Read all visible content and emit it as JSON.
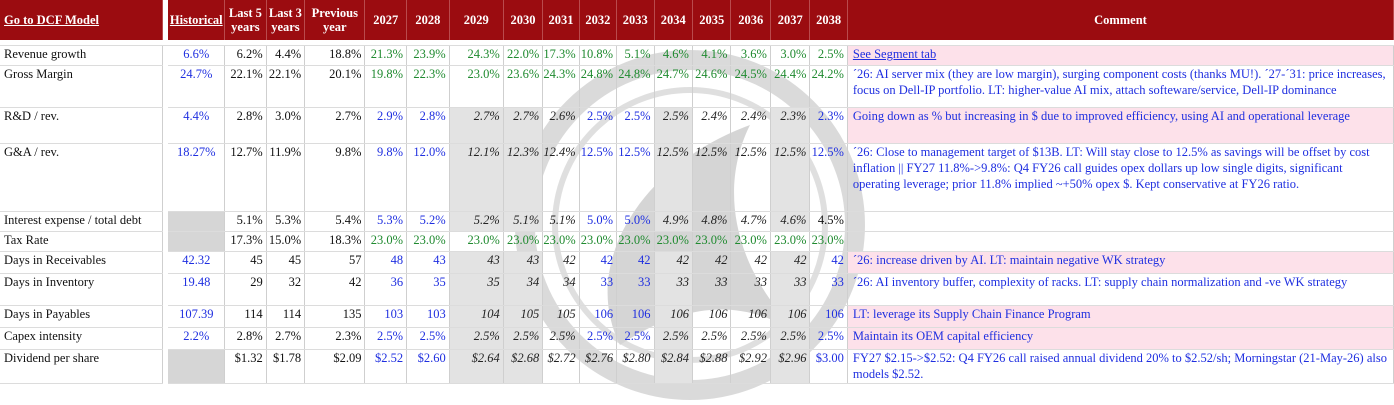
{
  "header": {
    "link_label": "Go to DCF Model",
    "historical": "Historical",
    "last5": "Last 5 years",
    "last3": "Last 3 years",
    "previous": "Previous year",
    "years": [
      "2027",
      "2028",
      "2029",
      "2030",
      "2031",
      "2032",
      "2033",
      "2034",
      "2035",
      "2036",
      "2037",
      "2038"
    ],
    "comment": "Comment"
  },
  "rows": [
    {
      "label": "Revenue growth",
      "historical": "6.6%",
      "last5": "6.2%",
      "last3": "4.4%",
      "previous": "18.8%",
      "values": [
        "21.3%",
        "23.9%",
        "24.3%",
        "22.0%",
        "17.3%",
        "10.8%",
        "5.1%",
        "4.6%",
        "4.1%",
        "3.6%",
        "3.0%",
        "2.5%"
      ],
      "styles": [
        "g",
        "g",
        "g",
        "g",
        "g",
        "g",
        "g",
        "g",
        "g",
        "g",
        "g",
        "g"
      ],
      "comment": "See Segment tab",
      "comment_link": true,
      "pink": true
    },
    {
      "label": "Gross Margin",
      "historical": "24.7%",
      "last5": "22.1%",
      "last3": "22.1%",
      "previous": "20.1%",
      "values": [
        "19.8%",
        "22.3%",
        "23.0%",
        "23.6%",
        "24.3%",
        "24.8%",
        "24.8%",
        "24.7%",
        "24.6%",
        "24.5%",
        "24.4%",
        "24.2%"
      ],
      "styles": [
        "g",
        "g",
        "g",
        "g",
        "g",
        "g",
        "g",
        "g",
        "g",
        "g",
        "g",
        "g"
      ],
      "comment": "´26: AI server mix (they are low margin), surging component costs (thanks MU!). ´27-´31: price increases, focus on Dell-IP portfolio. LT: higher-value AI mix, attach softeware/service, Dell-IP dominance",
      "pink": false
    },
    {
      "label": "R&D / rev.",
      "historical": "4.4%",
      "last5": "2.8%",
      "last3": "3.0%",
      "previous": "2.7%",
      "values": [
        "2.9%",
        "2.8%",
        "2.7%",
        "2.7%",
        "2.6%",
        "2.5%",
        "2.5%",
        "2.5%",
        "2.4%",
        "2.4%",
        "2.3%",
        "2.3%"
      ],
      "styles": [
        "b",
        "b",
        "ks",
        "ks",
        "k",
        "b",
        "b",
        "ks",
        "k",
        "k",
        "ks",
        "b"
      ],
      "comment": "Going down as % but increasing in $ due to improved efficiency, using AI and operational leverage",
      "pink": true
    },
    {
      "label": "G&A / rev.",
      "historical": "18.27%",
      "last5": "12.7%",
      "last3": "11.9%",
      "previous": "9.8%",
      "values": [
        "9.8%",
        "12.0%",
        "12.1%",
        "12.3%",
        "12.4%",
        "12.5%",
        "12.5%",
        "12.5%",
        "12.5%",
        "12.5%",
        "12.5%",
        "12.5%"
      ],
      "styles": [
        "b",
        "b",
        "ks",
        "ks",
        "k",
        "b",
        "b",
        "ks",
        "k",
        "k",
        "ks",
        "b"
      ],
      "comment": "´26: Close to management target of $13B. LT: Will stay close to 12.5% as savings will be offset by cost inflation || FY27 11.8%->9.8%: Q4 FY26 call guides opex dollars up low single digits, significant operating leverage; prior 11.8% implied ~+50% opex $. Kept conservative at FY26 ratio.",
      "pink": false
    },
    {
      "label": "Interest expense / total debt",
      "historical": "",
      "last5": "5.1%",
      "last3": "5.3%",
      "previous": "5.4%",
      "values": [
        "5.3%",
        "5.2%",
        "5.2%",
        "5.1%",
        "5.1%",
        "5.0%",
        "5.0%",
        "4.9%",
        "4.8%",
        "4.7%",
        "4.6%",
        "4.5%"
      ],
      "styles": [
        "b",
        "b",
        "ks",
        "ks",
        "k",
        "b",
        "b",
        "ks",
        "k",
        "k",
        "ks",
        "p"
      ],
      "comment": "",
      "pink": false
    },
    {
      "label": "Tax Rate",
      "historical": "",
      "last5": "17.3%",
      "last3": "15.0%",
      "previous": "18.3%",
      "values": [
        "23.0%",
        "23.0%",
        "23.0%",
        "23.0%",
        "23.0%",
        "23.0%",
        "23.0%",
        "23.0%",
        "23.0%",
        "23.0%",
        "23.0%",
        "23.0%"
      ],
      "styles": [
        "g",
        "g",
        "g",
        "g",
        "g",
        "g",
        "g",
        "g",
        "g",
        "g",
        "g",
        "g"
      ],
      "comment": "",
      "pink": false
    },
    {
      "label": "Days in Receivables",
      "historical": "42.32",
      "last5": "45",
      "last3": "45",
      "previous": "57",
      "values": [
        "48",
        "43",
        "43",
        "43",
        "42",
        "42",
        "42",
        "42",
        "42",
        "42",
        "42",
        "42"
      ],
      "styles": [
        "b",
        "b",
        "ks",
        "ks",
        "k",
        "b",
        "b",
        "ks",
        "k",
        "k",
        "ks",
        "b"
      ],
      "comment": "´26: increase driven by AI. LT: maintain negative WK strategy",
      "pink": true
    },
    {
      "label": "Days in Inventory",
      "historical": "19.48",
      "last5": "29",
      "last3": "32",
      "previous": "42",
      "values": [
        "36",
        "35",
        "35",
        "34",
        "34",
        "33",
        "33",
        "33",
        "33",
        "33",
        "33",
        "33"
      ],
      "styles": [
        "b",
        "b",
        "ks",
        "ks",
        "k",
        "b",
        "b",
        "ks",
        "k",
        "k",
        "ks",
        "b"
      ],
      "comment": "´26: AI inventory buffer, complexity of racks. LT: supply chain normalization and -ve WK strategy",
      "pink": false
    },
    {
      "label": "Days in Payables",
      "historical": "107.39",
      "last5": "114",
      "last3": "114",
      "previous": "135",
      "values": [
        "103",
        "103",
        "104",
        "105",
        "105",
        "106",
        "106",
        "106",
        "106",
        "106",
        "106",
        "106"
      ],
      "styles": [
        "b",
        "b",
        "ks",
        "ks",
        "k",
        "b",
        "b",
        "ks",
        "k",
        "k",
        "ks",
        "b"
      ],
      "comment": "LT: leverage its Supply Chain Finance Program",
      "pink": true
    },
    {
      "label": "Capex intensity",
      "historical": "2.2%",
      "last5": "2.8%",
      "last3": "2.7%",
      "previous": "2.3%",
      "values": [
        "2.5%",
        "2.5%",
        "2.5%",
        "2.5%",
        "2.5%",
        "2.5%",
        "2.5%",
        "2.5%",
        "2.5%",
        "2.5%",
        "2.5%",
        "2.5%"
      ],
      "styles": [
        "b",
        "b",
        "ks",
        "ks",
        "k",
        "b",
        "b",
        "ks",
        "k",
        "k",
        "ks",
        "b"
      ],
      "comment": "Maintain its OEM capital efficiency",
      "pink": true
    },
    {
      "label": "Dividend per share",
      "historical": "",
      "last5": "$1.32",
      "last3": "$1.78",
      "previous": "$2.09",
      "values": [
        "$2.52",
        "$2.60",
        "$2.64",
        "$2.68",
        "$2.72",
        "$2.76",
        "$2.80",
        "$2.84",
        "$2.88",
        "$2.92",
        "$2.96",
        "$3.00"
      ],
      "styles": [
        "b",
        "b",
        "ks",
        "ks",
        "k",
        "k",
        "k",
        "ks",
        "k",
        "k",
        "ks",
        "b"
      ],
      "comment": "FY27 $2.15->$2.52: Q4 FY26 call raised annual dividend 20% to $2.52/sh; Morningstar (21-May-26) also models $2.52.",
      "pink": false
    }
  ]
}
